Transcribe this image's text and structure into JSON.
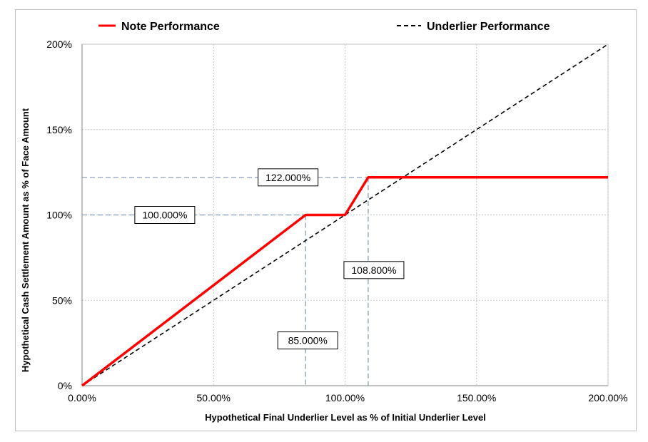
{
  "chart_data": {
    "type": "line",
    "xlabel": "Hypothetical Final Underlier Level as % of Initial Underlier Level",
    "ylabel": "Hypothetical Cash Settlement Amount as % of Face Amount",
    "xlim": [
      0,
      200
    ],
    "ylim": [
      0,
      200
    ],
    "x_ticks": [
      0,
      50,
      100,
      150,
      200
    ],
    "x_tick_labels": [
      "0.00%",
      "50.00%",
      "100.00%",
      "150.00%",
      "200.00%"
    ],
    "y_ticks": [
      0,
      50,
      100,
      150,
      200
    ],
    "y_tick_labels": [
      "0%",
      "50%",
      "100%",
      "150%",
      "200%"
    ],
    "grid": true,
    "legend_position": "top",
    "series": [
      {
        "name": "Note Performance",
        "style": "solid",
        "color": "#ff0000",
        "x": [
          0,
          85,
          100,
          108.8,
          200
        ],
        "y": [
          0,
          100,
          100,
          122,
          122
        ]
      },
      {
        "name": "Underlier Performance",
        "style": "dashed",
        "color": "#000000",
        "x": [
          0,
          200
        ],
        "y": [
          0,
          200
        ]
      }
    ],
    "annotations": [
      {
        "label": "122.000%",
        "x": 108.8,
        "y": 122,
        "guide": "horizontal"
      },
      {
        "label": "100.000%",
        "x": 85,
        "y": 100,
        "guide": "horizontal"
      },
      {
        "label": "108.800%",
        "x": 108.8,
        "y": 122,
        "guide": "vertical"
      },
      {
        "label": "85.000%",
        "x": 85,
        "y": 100,
        "guide": "vertical"
      }
    ],
    "guide_color": "#8096b4"
  }
}
